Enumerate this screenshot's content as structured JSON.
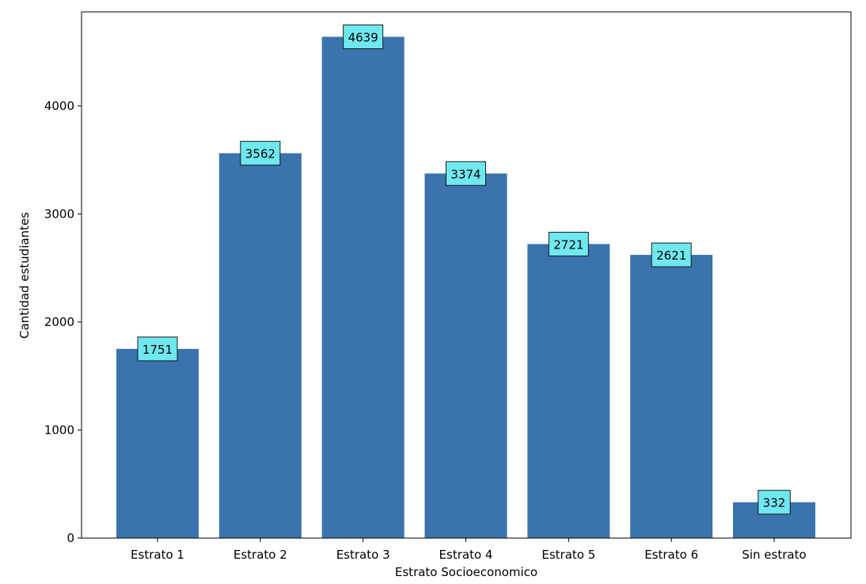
{
  "chart_data": {
    "type": "bar",
    "categories": [
      "Estrato 1",
      "Estrato 2",
      "Estrato 3",
      "Estrato 4",
      "Estrato 5",
      "Estrato 6",
      "Sin estrato"
    ],
    "values": [
      1751,
      3562,
      4639,
      3374,
      2721,
      2621,
      332
    ],
    "data_labels": [
      "1751",
      "3562",
      "4639",
      "3374",
      "2721",
      "2621",
      "332"
    ],
    "xlabel": "Estrato Socioeconomico",
    "ylabel": "Cantidad estudiantes",
    "ylim": [
      0,
      4870
    ],
    "yticks": [
      0,
      1000,
      2000,
      3000,
      4000
    ],
    "ytick_labels": [
      "0",
      "1000",
      "2000",
      "3000",
      "4000"
    ],
    "grid": false,
    "colors": {
      "bar": "#3a73ad",
      "label_box": "#6fe8f0",
      "label_box_border": "#1a1a1a",
      "axis": "#000000"
    }
  }
}
